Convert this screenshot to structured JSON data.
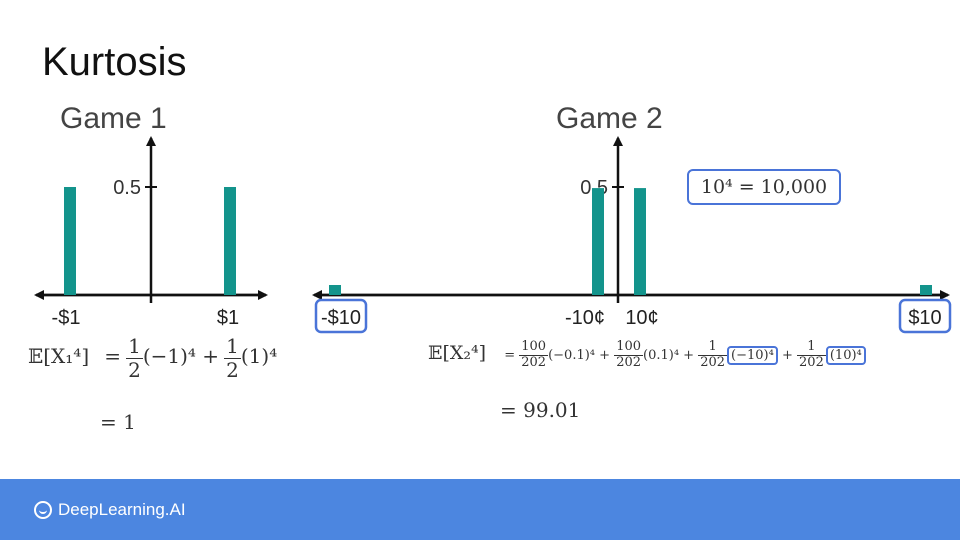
{
  "title": "Kurtosis",
  "chart_data": [
    {
      "type": "bar",
      "title": "Game 1",
      "categories": [
        "-$1",
        "$1"
      ],
      "x": [
        -1,
        1
      ],
      "values": [
        0.5,
        0.5
      ],
      "ytick_label": "0.5",
      "xlim": [
        -1.5,
        1.5
      ],
      "ylim": [
        0,
        0.7
      ],
      "color": "#13948c"
    },
    {
      "type": "bar",
      "title": "Game 2",
      "categories": [
        "-$10",
        "-10¢",
        "10¢",
        "$10"
      ],
      "x": [
        -10,
        -0.1,
        0.1,
        10
      ],
      "values": [
        0.005,
        0.495,
        0.495,
        0.005
      ],
      "ytick_label": "0.5",
      "xlim": [
        -10.5,
        10.5
      ],
      "ylim": [
        0,
        0.7
      ],
      "color": "#13948c",
      "highlighted_labels": [
        "-$10",
        "$10"
      ]
    }
  ],
  "game1_formula": {
    "lhs": "𝔼[X₁⁴]",
    "eq": "=",
    "f1_num": "1",
    "f1_den": "2",
    "t1": "(−1)⁴ +",
    "f2_num": "1",
    "f2_den": "2",
    "t2": "(1)⁴",
    "result": "= 1"
  },
  "game2_formula": {
    "lhs": "𝔼[X₂⁴]",
    "eq": "=",
    "f1_num": "100",
    "f1_den": "202",
    "t1": "(−0.1)⁴ +",
    "f2_num": "100",
    "f2_den": "202",
    "t2": "(0.1)⁴ +",
    "f3_num": "1",
    "f3_den": "202",
    "t3": "(−10)⁴",
    "plus": "+",
    "f4_num": "1",
    "f4_den": "202",
    "t4": "(10)⁴",
    "result": "= 99.01"
  },
  "callout": "10⁴ = 10,000",
  "footer": {
    "brand": "DeepLearning.AI"
  },
  "colors": {
    "bar": "#13948c",
    "accent": "#4a74d8",
    "footer": "#4c86e0"
  }
}
